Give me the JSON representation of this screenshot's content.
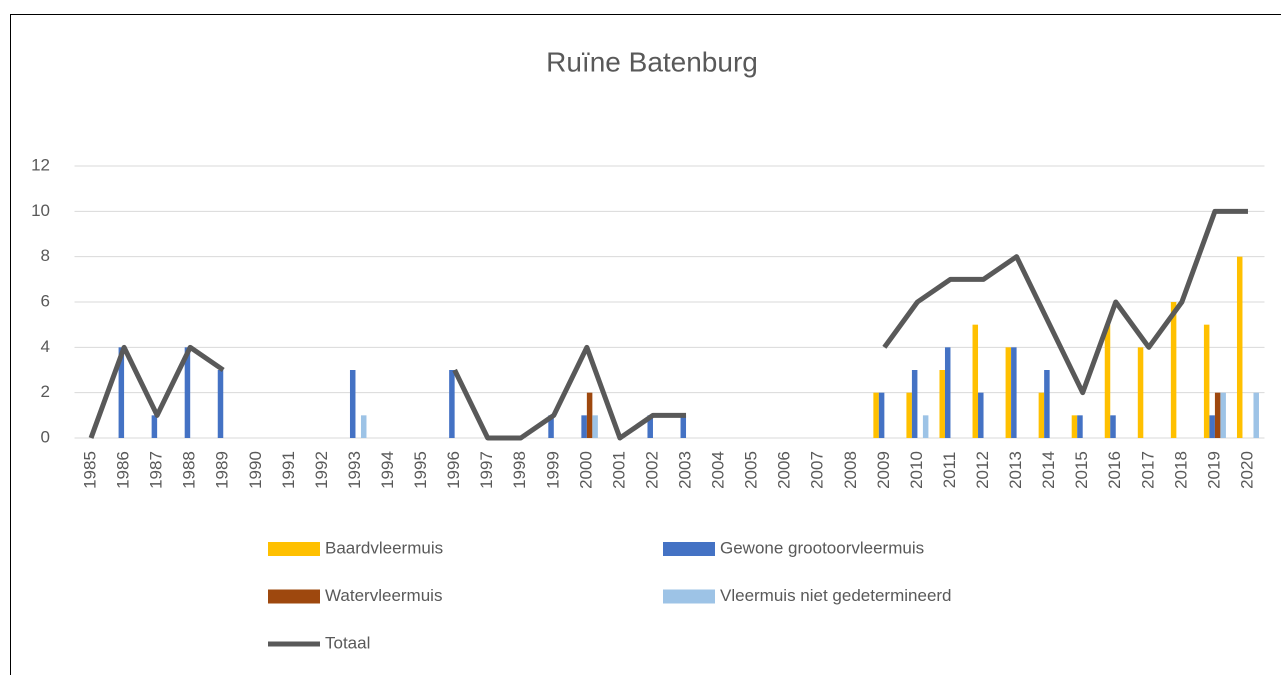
{
  "chart_data": {
    "type": "bar_line",
    "title": "Ruïne Batenburg",
    "categories": [
      "1985",
      "1986",
      "1987",
      "1988",
      "1989",
      "1990",
      "1991",
      "1992",
      "1993",
      "1994",
      "1995",
      "1996",
      "1997",
      "1998",
      "1999",
      "2000",
      "2001",
      "2002",
      "2003",
      "2004",
      "2005",
      "2006",
      "2007",
      "2008",
      "2009",
      "2010",
      "2011",
      "2012",
      "2013",
      "2014",
      "2015",
      "2016",
      "2017",
      "2018",
      "2019",
      "2020"
    ],
    "series": [
      {
        "name": "Baardvleermuis",
        "color": "#ffc000",
        "values": [
          0,
          0,
          0,
          0,
          0,
          0,
          0,
          0,
          0,
          0,
          0,
          0,
          0,
          0,
          0,
          0,
          0,
          0,
          0,
          0,
          0,
          0,
          0,
          0,
          2,
          2,
          3,
          5,
          4,
          2,
          1,
          5,
          4,
          6,
          5,
          8
        ]
      },
      {
        "name": "Gewone grootoorvleermuis",
        "color": "#4472c4",
        "values": [
          0,
          4,
          1,
          4,
          3,
          0,
          0,
          0,
          3,
          0,
          0,
          3,
          0,
          0,
          1,
          1,
          0,
          1,
          1,
          0,
          0,
          0,
          0,
          0,
          2,
          3,
          4,
          2,
          4,
          3,
          1,
          1,
          0,
          0,
          1,
          0
        ]
      },
      {
        "name": "Watervleermuis",
        "color": "#9e480e",
        "values": [
          0,
          0,
          0,
          0,
          0,
          0,
          0,
          0,
          0,
          0,
          0,
          0,
          0,
          0,
          0,
          2,
          0,
          0,
          0,
          0,
          0,
          0,
          0,
          0,
          0,
          0,
          0,
          0,
          0,
          0,
          0,
          0,
          0,
          0,
          2,
          0
        ]
      },
      {
        "name": "Vleermuis niet gedetermineerd",
        "color": "#9dc3e6",
        "values": [
          0,
          0,
          0,
          0,
          0,
          0,
          0,
          0,
          1,
          0,
          0,
          0,
          0,
          0,
          0,
          1,
          0,
          0,
          0,
          0,
          0,
          0,
          0,
          0,
          0,
          1,
          0,
          0,
          0,
          0,
          0,
          0,
          0,
          0,
          2,
          2
        ]
      },
      {
        "name": "Totaal",
        "color": "#595959",
        "line": true,
        "values": [
          0,
          4,
          1,
          4,
          3,
          null,
          null,
          null,
          null,
          null,
          null,
          3,
          0,
          0,
          1,
          4,
          0,
          1,
          1,
          null,
          null,
          null,
          null,
          null,
          4,
          6,
          7,
          7,
          8,
          5,
          2,
          6,
          4,
          6,
          10,
          10
        ]
      }
    ],
    "ylim": [
      0,
      12
    ],
    "yticks": [
      0,
      2,
      4,
      6,
      8,
      10,
      12
    ],
    "grid": true
  }
}
